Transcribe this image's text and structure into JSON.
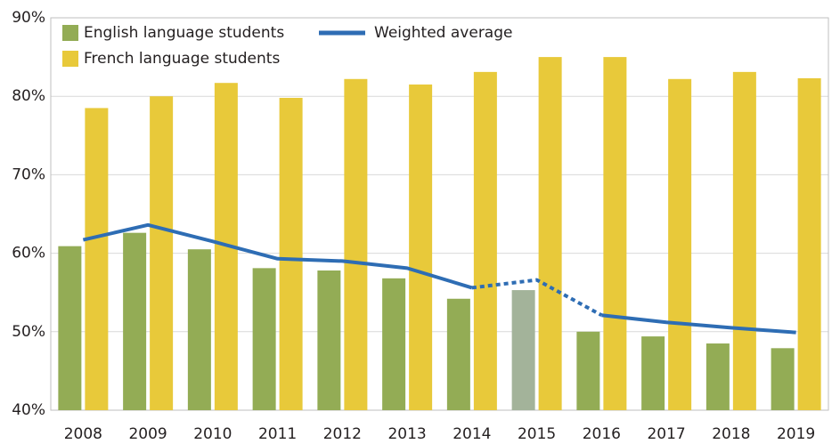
{
  "chart_data": {
    "type": "bar_line",
    "categories": [
      "2008",
      "2009",
      "2010",
      "2011",
      "2012",
      "2013",
      "2014",
      "2015",
      "2016",
      "2017",
      "2018",
      "2019"
    ],
    "series": [
      {
        "name": "English language students",
        "type": "bar",
        "color": "#93ac55",
        "values": [
          60.9,
          62.6,
          60.5,
          58.1,
          57.8,
          56.8,
          54.2,
          55.3,
          50.0,
          49.4,
          48.5,
          47.9
        ]
      },
      {
        "name": "French language students",
        "type": "bar",
        "color": "#e8c93a",
        "values": [
          78.5,
          80.0,
          81.7,
          79.8,
          82.2,
          81.5,
          83.1,
          85.0,
          85.0,
          82.2,
          83.1,
          82.3
        ]
      },
      {
        "name": "Weighted average",
        "type": "line",
        "color": "#2e6db4",
        "values": [
          61.7,
          63.6,
          61.5,
          59.3,
          59.0,
          58.1,
          55.6,
          56.6,
          52.1,
          51.2,
          50.5,
          49.9
        ]
      }
    ],
    "estimated_category": "2015",
    "estimated_color": "#a3b39a",
    "ylim": [
      40,
      90
    ],
    "yticks": [
      {
        "value": 40,
        "label": "40%"
      },
      {
        "value": 50,
        "label": "50%"
      },
      {
        "value": 60,
        "label": "60%"
      },
      {
        "value": 70,
        "label": "70%"
      },
      {
        "value": 80,
        "label": "80%"
      },
      {
        "value": 90,
        "label": "90%"
      }
    ],
    "grid": true
  }
}
